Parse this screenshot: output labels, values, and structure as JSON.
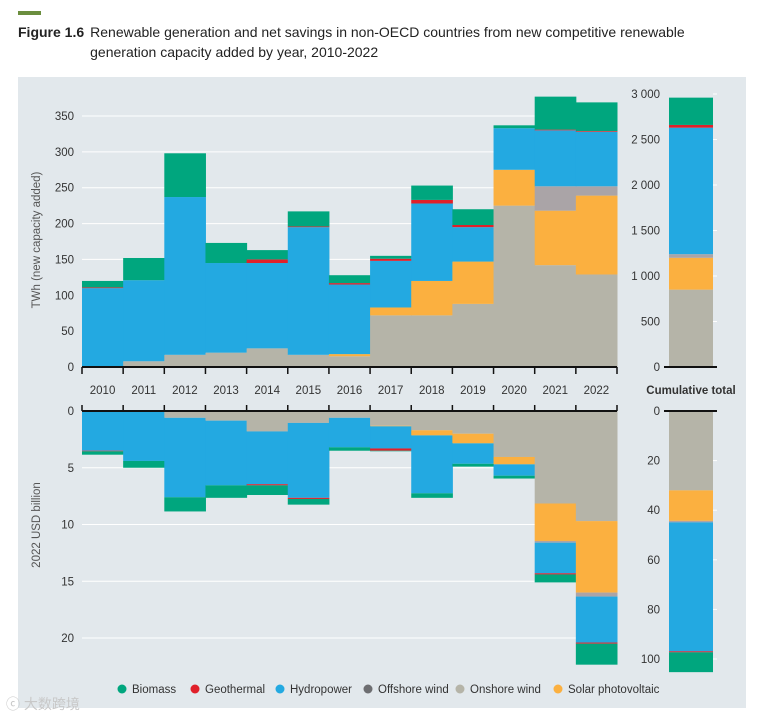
{
  "figure": {
    "number": "Figure 1.6",
    "title": "Renewable generation and net savings in non-OECD countries from new competitive renewable generation capacity added by year, 2010-2022"
  },
  "watermark": "大数跨境",
  "colors": {
    "Biomass": "#00a67e",
    "Geothermal": "#e0202a",
    "Hydropower": "#23a9e1",
    "Offshore wind": "#6d6e71",
    "Onshore wind": "#b5b4a8",
    "Solar photovoltaic": "#fbb040",
    "offshore_bar": "#aaa4a7"
  },
  "chart_data": [
    {
      "type": "bar",
      "stacked": true,
      "title": "",
      "ylabel": "TWh (new capacity added)",
      "ylim": [
        0,
        375
      ],
      "yticks": [
        0,
        50,
        100,
        150,
        200,
        250,
        300,
        350
      ],
      "categories": [
        "2010",
        "2011",
        "2012",
        "2013",
        "2014",
        "2015",
        "2016",
        "2017",
        "2018",
        "2019",
        "2020",
        "2021",
        "2022"
      ],
      "series": [
        {
          "name": "Onshore wind",
          "values": [
            0,
            8,
            17,
            20,
            26,
            17,
            15,
            72,
            72,
            88,
            225,
            142,
            129
          ]
        },
        {
          "name": "Solar photovoltaic",
          "values": [
            0,
            0,
            0,
            0,
            0,
            0,
            3,
            11,
            48,
            59,
            50,
            76,
            110
          ]
        },
        {
          "name": "Offshore wind",
          "values": [
            0,
            0,
            0,
            0,
            0,
            0,
            0,
            0,
            0,
            0,
            0,
            34,
            13
          ]
        },
        {
          "name": "Hydropower",
          "values": [
            110,
            113,
            220,
            125,
            119,
            178,
            97,
            65,
            108,
            48,
            58,
            78,
            76
          ]
        },
        {
          "name": "Geothermal",
          "values": [
            1,
            0,
            0,
            0,
            5,
            1,
            2,
            3,
            5,
            3,
            0,
            1,
            1
          ]
        },
        {
          "name": "Biomass",
          "values": [
            9,
            31,
            61,
            28,
            13,
            21,
            11,
            4,
            20,
            22,
            4,
            46,
            40
          ]
        }
      ],
      "cumulative": {
        "label": "Cumulative total",
        "ylim": [
          0,
          3000
        ],
        "yticks": [
          "0",
          "500",
          "1 000",
          "1 500",
          "2 000",
          "2 500",
          "3 000"
        ],
        "values": {
          "Onshore wind": 850,
          "Solar photovoltaic": 350,
          "Offshore wind": 40,
          "Hydropower": 1390,
          "Geothermal": 30,
          "Biomass": 300
        }
      }
    },
    {
      "type": "bar",
      "stacked": true,
      "direction": "downward",
      "ylabel": "2022 USD billion",
      "ylim": [
        0,
        22.5
      ],
      "yticks": [
        0,
        5,
        10,
        15,
        20
      ],
      "categories": [
        "2010",
        "2011",
        "2012",
        "2013",
        "2014",
        "2015",
        "2016",
        "2017",
        "2018",
        "2019",
        "2020",
        "2021",
        "2022"
      ],
      "series": [
        {
          "name": "Onshore wind",
          "values": [
            0,
            0,
            0.6,
            0.85,
            1.8,
            1.05,
            0.6,
            1.3,
            1.7,
            2.0,
            4.05,
            8.15,
            9.7
          ]
        },
        {
          "name": "Solar photovoltaic",
          "values": [
            0,
            0,
            0,
            0,
            0,
            0,
            0,
            0.05,
            0.45,
            0.85,
            0.65,
            3.3,
            6.3
          ]
        },
        {
          "name": "Offshore wind",
          "values": [
            0,
            0,
            0,
            0,
            0,
            0,
            0,
            0,
            0,
            0,
            0,
            0.15,
            0.35
          ]
        },
        {
          "name": "Hydropower",
          "values": [
            3.5,
            4.4,
            7.0,
            5.7,
            4.65,
            6.6,
            2.6,
            1.95,
            5.1,
            1.8,
            1.0,
            2.7,
            4.05
          ]
        },
        {
          "name": "Geothermal",
          "values": [
            0.05,
            0,
            0,
            0,
            0.1,
            0.1,
            0,
            0.2,
            0,
            0,
            0,
            0.1,
            0.1
          ]
        },
        {
          "name": "Biomass",
          "values": [
            0.3,
            0.6,
            1.25,
            1.1,
            0.85,
            0.5,
            0.3,
            0.05,
            0.4,
            0.25,
            0.25,
            0.7,
            1.85
          ]
        }
      ],
      "cumulative": {
        "ylim": [
          0,
          100
        ],
        "yticks": [
          "0",
          "20",
          "40",
          "60",
          "80",
          "100"
        ],
        "values": {
          "Onshore wind": 32,
          "Solar photovoltaic": 12.3,
          "Offshore wind": 0.6,
          "Hydropower": 52,
          "Geothermal": 0.4,
          "Biomass": 8
        }
      }
    }
  ],
  "legend": [
    "Biomass",
    "Geothermal",
    "Hydropower",
    "Offshore wind",
    "Onshore wind",
    "Solar photovoltaic"
  ]
}
